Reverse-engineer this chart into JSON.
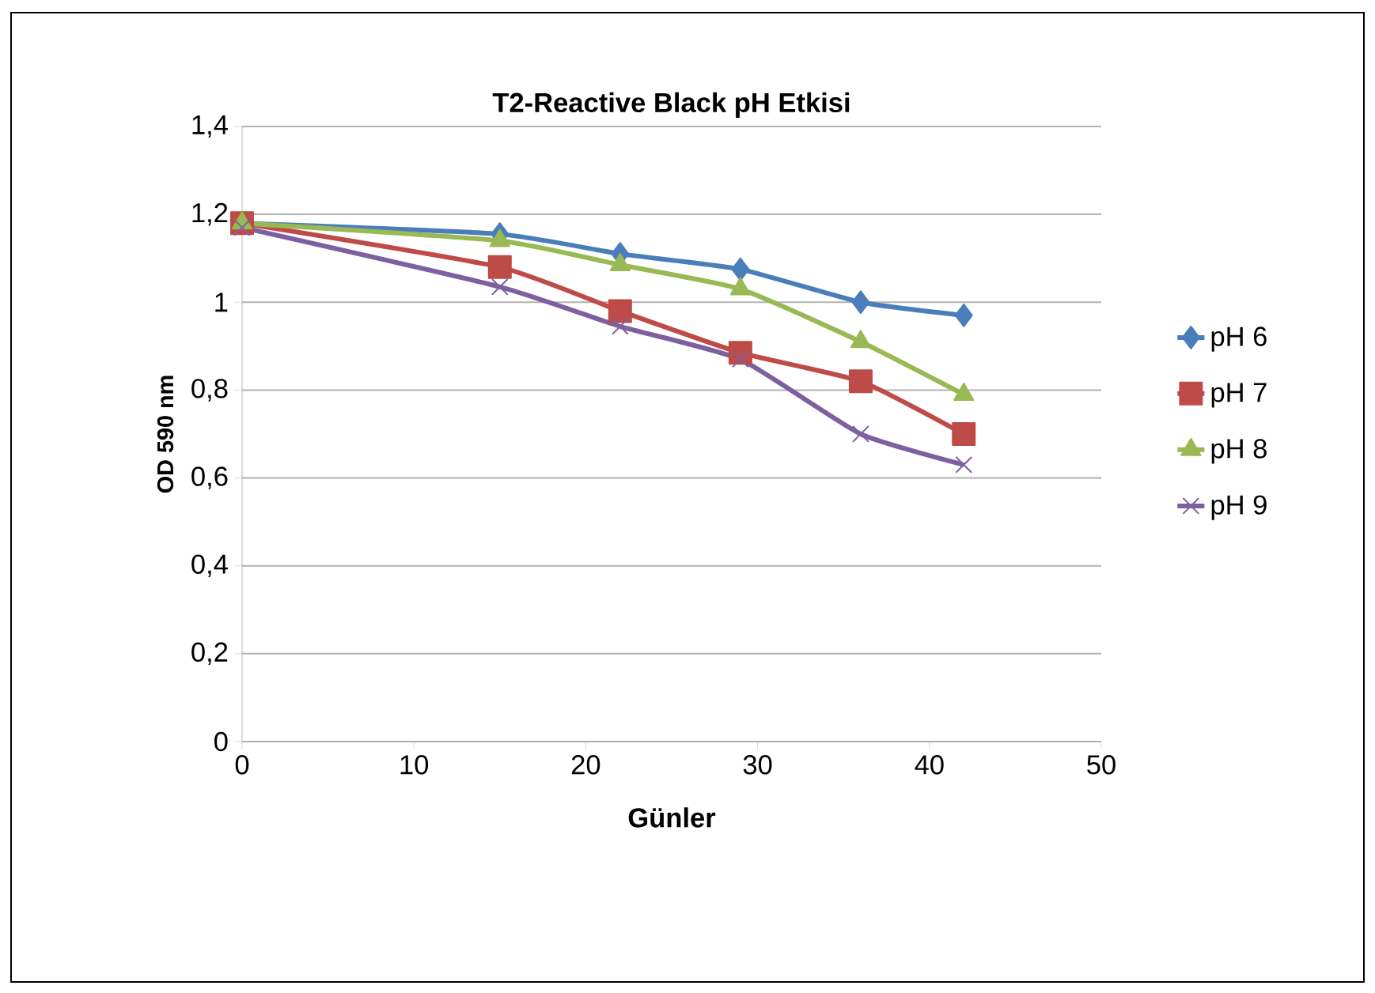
{
  "chart_data": {
    "type": "line",
    "title": "T2-Reactive Black pH Etkisi",
    "xlabel": "Günler",
    "ylabel": "OD 590 nm",
    "x": [
      0,
      15,
      22,
      29,
      36,
      42
    ],
    "series": [
      {
        "name": "pH 6",
        "color": "#4a7ebb",
        "marker": "diamond",
        "values": [
          1.18,
          1.155,
          1.11,
          1.075,
          1.0,
          0.97
        ]
      },
      {
        "name": "pH 7",
        "color": "#be4b48",
        "marker": "square",
        "values": [
          1.18,
          1.08,
          0.98,
          0.885,
          0.82,
          0.7
        ]
      },
      {
        "name": "pH 8",
        "color": "#98b954",
        "marker": "triangle",
        "values": [
          1.18,
          1.14,
          1.085,
          1.03,
          0.91,
          0.79
        ]
      },
      {
        "name": "pH 9",
        "color": "#7d60a0",
        "marker": "cross",
        "values": [
          1.17,
          1.035,
          0.945,
          0.87,
          0.7,
          0.63
        ]
      }
    ],
    "xlim": [
      0,
      50
    ],
    "xticks": [
      0,
      10,
      20,
      30,
      40,
      50
    ],
    "ylim": [
      0,
      1.4
    ],
    "yticks": [
      0,
      {
        "value": 0.2,
        "label": "0,2"
      },
      {
        "value": 0.4,
        "label": "0,4"
      },
      {
        "value": 0.6,
        "label": "0,6"
      },
      {
        "value": 0.8,
        "label": "0,8"
      },
      1,
      {
        "value": 1.2,
        "label": "1,2"
      },
      {
        "value": 1.4,
        "label": "1,4"
      }
    ],
    "grid": "y",
    "legend": "right",
    "line_style": "solid"
  }
}
